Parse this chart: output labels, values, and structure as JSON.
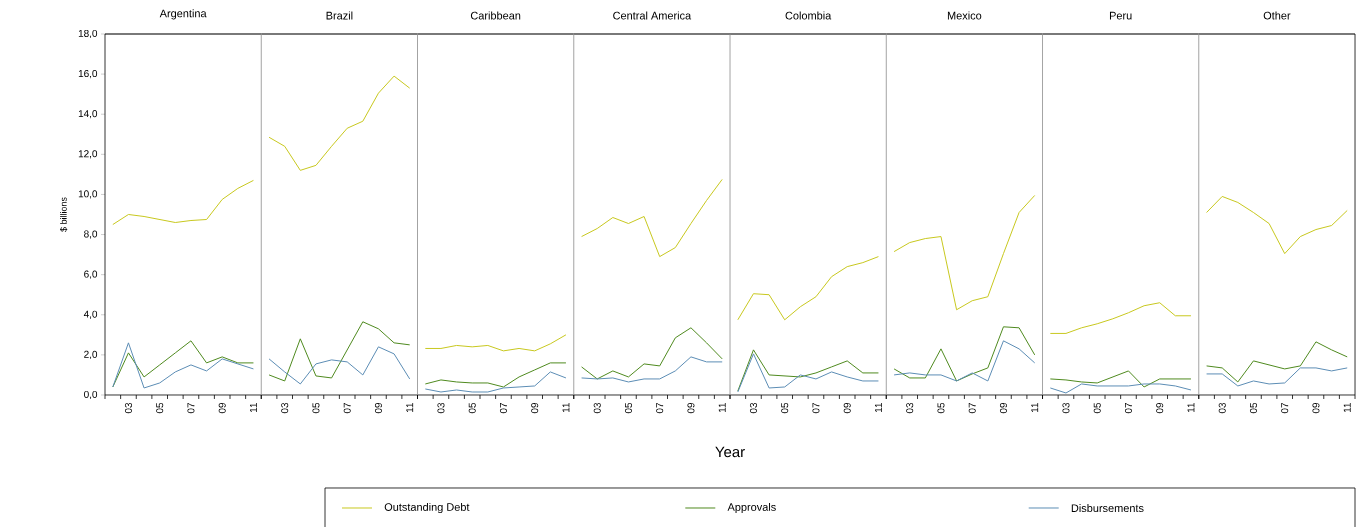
{
  "chart_data": [
    {
      "type": "line",
      "title": "Argentina",
      "ylabel": "$ billions",
      "legend": "bottom",
      "categories": [
        null,
        "03",
        null,
        "05",
        null,
        "07",
        null,
        "09",
        null,
        "11"
      ],
      "ylim": [
        0,
        18
      ],
      "yticks": [
        {
          "value": 0,
          "label": "0,0"
        },
        {
          "value": 2,
          "label": "2,0"
        },
        {
          "value": 4,
          "label": "4,0"
        },
        {
          "value": 6,
          "label": "6,0"
        },
        {
          "value": 8,
          "label": "8,0"
        },
        {
          "value": 10,
          "label": "10,0"
        },
        {
          "value": 12,
          "label": "12,0"
        },
        {
          "value": 14,
          "label": "14,0"
        },
        {
          "value": 16,
          "label": "16,0"
        },
        {
          "value": 18,
          "label": "18,0"
        }
      ],
      "series": [
        {
          "name": "Outstanding Debt",
          "color": "#c8c81e",
          "values": [
            8.5,
            9.0,
            8.9,
            8.75,
            8.6,
            8.7,
            8.75,
            9.75,
            10.3,
            10.7
          ]
        },
        {
          "name": "Approvals",
          "color": "#4e8a1e",
          "values": [
            0.4,
            2.1,
            0.9,
            1.5,
            2.1,
            2.7,
            1.6,
            1.9,
            1.6,
            1.6
          ]
        },
        {
          "name": "Disbursements",
          "color": "#5b8db5",
          "values": [
            0.4,
            2.6,
            0.35,
            0.6,
            1.15,
            1.5,
            1.2,
            1.8,
            1.55,
            1.3
          ]
        }
      ]
    },
    {
      "type": "line",
      "title": "Brazil",
      "tick_labels": "x",
      "categories": [
        null,
        "03",
        null,
        "05",
        null,
        "07",
        null,
        "09",
        null,
        "11"
      ],
      "ylim": [
        0,
        18
      ],
      "series": [
        {
          "color": "#c8c81e",
          "values": [
            12.85,
            12.4,
            11.2,
            11.45,
            12.4,
            13.3,
            13.65,
            15.05,
            15.9,
            15.3
          ]
        },
        {
          "color": "#4e8a1e",
          "values": [
            1.0,
            0.7,
            2.8,
            0.95,
            0.85,
            2.25,
            3.65,
            3.3,
            2.6,
            2.5
          ]
        },
        {
          "color": "#5b8db5",
          "values": [
            1.8,
            1.15,
            0.55,
            1.55,
            1.75,
            1.65,
            1.0,
            2.4,
            2.05,
            0.8
          ]
        }
      ]
    },
    {
      "type": "line",
      "title": "Caribbean",
      "tick_labels": "x",
      "categories": [
        null,
        "03",
        null,
        "05",
        null,
        "07",
        null,
        "09",
        null,
        "11"
      ],
      "ylim": [
        0,
        18
      ],
      "series": [
        {
          "color": "#c8c81e",
          "values": [
            2.32,
            2.32,
            2.47,
            2.4,
            2.47,
            2.2,
            2.32,
            2.2,
            2.55,
            3.0
          ]
        },
        {
          "color": "#4e8a1e",
          "values": [
            0.55,
            0.75,
            0.65,
            0.6,
            0.6,
            0.4,
            0.9,
            1.25,
            1.6,
            1.6
          ]
        },
        {
          "color": "#5b8db5",
          "values": [
            0.3,
            0.15,
            0.25,
            0.15,
            0.15,
            0.35,
            0.4,
            0.45,
            1.15,
            0.85
          ]
        }
      ]
    },
    {
      "type": "line",
      "title": "Central America",
      "xlabel": "Year",
      "tick_labels": "x",
      "categories": [
        null,
        "03",
        null,
        "05",
        null,
        "07",
        null,
        "09",
        null,
        "11"
      ],
      "ylim": [
        0,
        18
      ],
      "series": [
        {
          "color": "#c8c81e",
          "values": [
            7.9,
            8.3,
            8.85,
            8.55,
            8.9,
            6.9,
            7.35,
            8.55,
            9.7,
            10.75
          ]
        },
        {
          "color": "#4e8a1e",
          "values": [
            1.4,
            0.8,
            1.2,
            0.9,
            1.55,
            1.45,
            2.85,
            3.35,
            2.6,
            1.8
          ]
        },
        {
          "color": "#5b8db5",
          "values": [
            0.85,
            0.8,
            0.85,
            0.65,
            0.8,
            0.8,
            1.2,
            1.9,
            1.65,
            1.65
          ]
        }
      ]
    },
    {
      "type": "line",
      "title": "Colombia",
      "tick_labels": "x",
      "categories": [
        null,
        "03",
        null,
        "05",
        null,
        "07",
        null,
        "09",
        null,
        "11"
      ],
      "ylim": [
        0,
        18
      ],
      "series": [
        {
          "color": "#c8c81e",
          "values": [
            3.75,
            5.05,
            5.0,
            3.75,
            4.4,
            4.9,
            5.9,
            6.4,
            6.6,
            6.9
          ]
        },
        {
          "color": "#4e8a1e",
          "values": [
            0.2,
            2.25,
            1.0,
            0.95,
            0.9,
            1.1,
            1.4,
            1.7,
            1.1,
            1.1
          ]
        },
        {
          "color": "#5b8db5",
          "values": [
            0.15,
            2.05,
            0.35,
            0.4,
            1.0,
            0.8,
            1.15,
            0.9,
            0.7,
            0.7
          ]
        }
      ]
    },
    {
      "type": "line",
      "title": "Mexico",
      "tick_labels": "x",
      "categories": [
        null,
        "03",
        null,
        "05",
        null,
        "07",
        null,
        "09",
        null,
        "11"
      ],
      "ylim": [
        0,
        18
      ],
      "series": [
        {
          "color": "#c8c81e",
          "values": [
            7.15,
            7.6,
            7.8,
            7.9,
            4.25,
            4.7,
            4.9,
            7.05,
            9.1,
            9.95
          ]
        },
        {
          "color": "#4e8a1e",
          "values": [
            1.3,
            0.85,
            0.85,
            2.3,
            0.7,
            1.05,
            1.35,
            3.4,
            3.35,
            2.0
          ]
        },
        {
          "color": "#5b8db5",
          "values": [
            1.0,
            1.1,
            1.0,
            1.0,
            0.7,
            1.1,
            0.7,
            2.7,
            2.3,
            1.6
          ]
        }
      ]
    },
    {
      "type": "line",
      "title": "Peru",
      "tick_labels": "x",
      "categories": [
        null,
        "03",
        null,
        "05",
        null,
        "07",
        null,
        "09",
        null,
        "11"
      ],
      "ylim": [
        0,
        18
      ],
      "series": [
        {
          "color": "#c8c81e",
          "values": [
            3.07,
            3.07,
            3.35,
            3.55,
            3.8,
            4.1,
            4.45,
            4.6,
            3.95,
            3.95
          ]
        },
        {
          "color": "#4e8a1e",
          "values": [
            0.8,
            0.75,
            0.65,
            0.6,
            0.9,
            1.2,
            0.4,
            0.8,
            0.8,
            0.8
          ]
        },
        {
          "color": "#5b8db5",
          "values": [
            0.35,
            0.1,
            0.55,
            0.45,
            0.45,
            0.45,
            0.55,
            0.55,
            0.45,
            0.25
          ]
        }
      ]
    },
    {
      "type": "line",
      "title": "Other",
      "tick_labels": "x",
      "categories": [
        null,
        "03",
        null,
        "05",
        null,
        "07",
        null,
        "09",
        null,
        "11"
      ],
      "ylim": [
        0,
        18
      ],
      "series": [
        {
          "color": "#c8c81e",
          "values": [
            9.1,
            9.9,
            9.6,
            9.1,
            8.55,
            7.05,
            7.9,
            8.25,
            8.45,
            9.2
          ]
        },
        {
          "color": "#4e8a1e",
          "values": [
            1.45,
            1.35,
            0.65,
            1.7,
            1.5,
            1.3,
            1.45,
            2.65,
            2.25,
            1.9
          ]
        },
        {
          "color": "#5b8db5",
          "values": [
            1.05,
            1.05,
            0.45,
            0.7,
            0.55,
            0.6,
            1.35,
            1.35,
            1.2,
            1.35
          ]
        }
      ]
    }
  ]
}
